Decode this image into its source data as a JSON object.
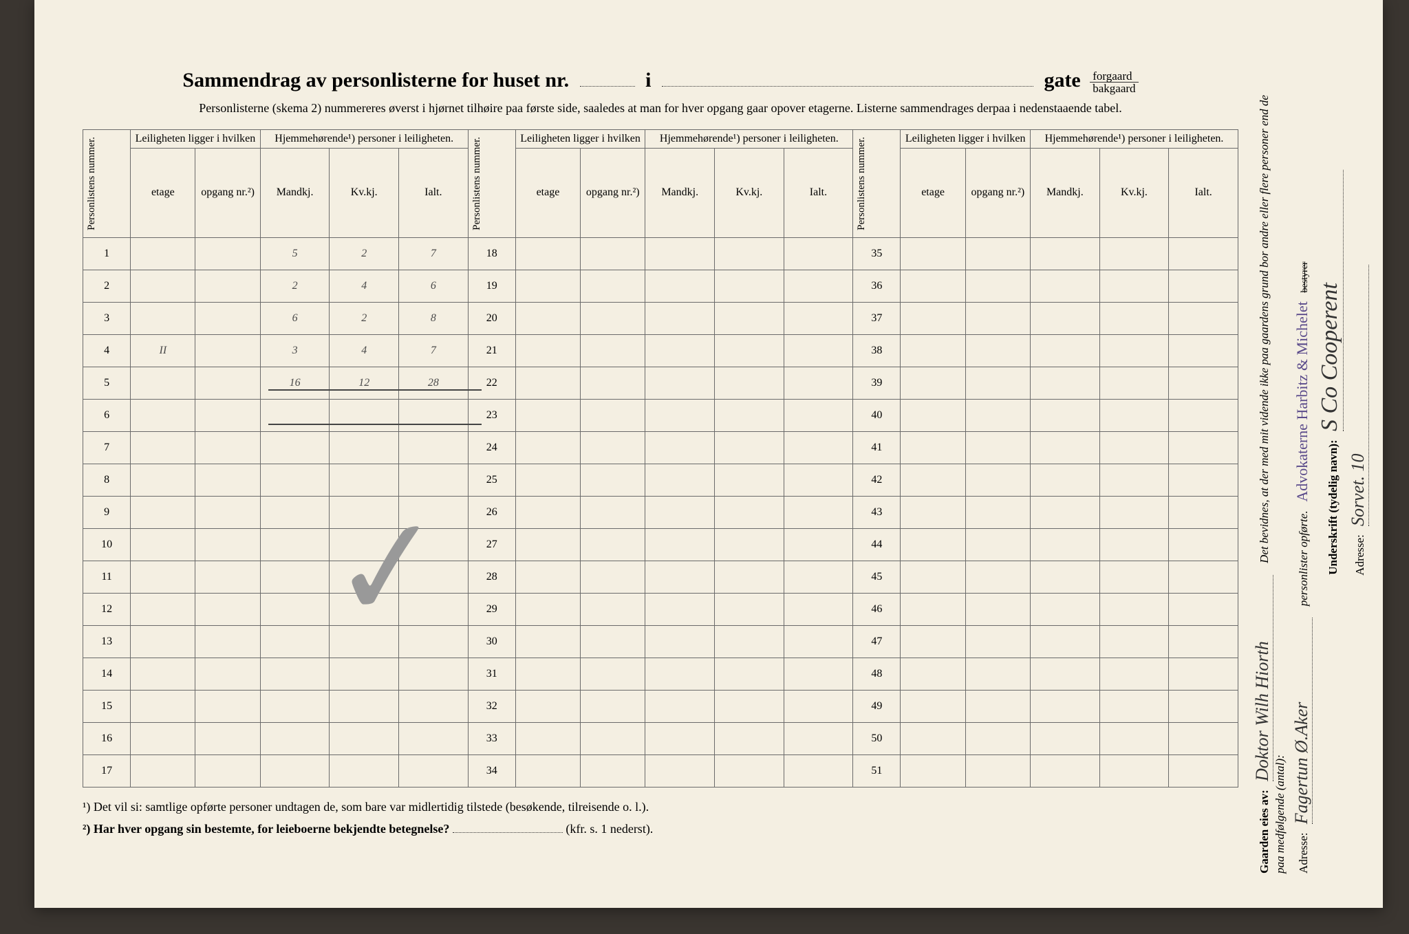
{
  "title": {
    "prefix": "Sammendrag av personlisterne for huset nr.",
    "blank_i": "i",
    "gate": "gate",
    "forgaard": "forgaard",
    "bakgaard": "bakgaard"
  },
  "subtitle": "Personlisterne (skema 2) nummereres øverst i hjørnet tilhøire paa første side, saaledes at man for hver opgang gaar opover etagerne. Listerne sammendrages derpaa i nedenstaaende tabel.",
  "headers": {
    "personlistens_nummer": "Personlistens nummer.",
    "leiligheten": "Leiligheten ligger i hvilken",
    "hjemme": "Hjemmehørende¹) personer i leiligheten.",
    "etage": "etage",
    "opgang": "opgang nr.²)",
    "mandkj": "Mandkj.",
    "kvkj": "Kv.kj.",
    "ialt": "Ialt."
  },
  "row_numbers": {
    "col1": [
      "1",
      "2",
      "3",
      "4",
      "5",
      "6",
      "7",
      "8",
      "9",
      "10",
      "11",
      "12",
      "13",
      "14",
      "15",
      "16",
      "17"
    ],
    "col2": [
      "18",
      "19",
      "20",
      "21",
      "22",
      "23",
      "24",
      "25",
      "26",
      "27",
      "28",
      "29",
      "30",
      "31",
      "32",
      "33",
      "34"
    ],
    "col3": [
      "35",
      "36",
      "37",
      "38",
      "39",
      "40",
      "41",
      "42",
      "43",
      "44",
      "45",
      "46",
      "47",
      "48",
      "49",
      "50",
      "51"
    ]
  },
  "handwritten_rows": [
    {
      "row": 1,
      "etage": "",
      "mandkj": "5",
      "kvkj": "2",
      "ialt": "7"
    },
    {
      "row": 2,
      "etage": "",
      "mandkj": "2",
      "kvkj": "4",
      "ialt": "6"
    },
    {
      "row": 3,
      "etage": "",
      "mandkj": "6",
      "kvkj": "2",
      "ialt": "8"
    },
    {
      "row": 4,
      "etage": "II",
      "mandkj": "3",
      "kvkj": "4",
      "ialt": "7"
    },
    {
      "row": 5,
      "etage": "",
      "mandkj": "16",
      "kvkj": "12",
      "ialt": "28"
    }
  ],
  "handwritten_checkmark": "✓",
  "footnotes": {
    "f1": "¹) Det vil si: samtlige opførte personer undtagen de, som bare var midlertidig tilstede (besøkende, tilreisende o. l.).",
    "f2_prefix": "²) Har hver opgang sin bestemte, for leieboerne bekjendte betegnelse?",
    "f2_suffix": "(kfr. s. 1 nederst)."
  },
  "sidebar": {
    "gaarden_label": "Gaarden eies av:",
    "gaarden_value": "Doktor Wilh Hiorth",
    "adresse_label1": "Adresse:",
    "adresse_value1": "Fagertun Ø.Aker",
    "det_bevidnes": "Det bevidnes, at der med mit vidende ikke paa gaardens grund bor andre eller flere personer end de paa medfølgende (antal):",
    "personlister": "personlister opførte.",
    "stamp": "Advokaterne Harbitz & Michelet",
    "bestyrer": "bestyrer",
    "underskrift_label": "Underskrift (tydelig navn):",
    "underskrift_value": "S Co Cooperent",
    "adresse_label2": "Adresse:",
    "adresse_value2": "Sorvet. 10"
  },
  "colors": {
    "paper": "#f4efe2",
    "ink": "#333333",
    "pencil": "#4a4a4a",
    "border": "#6a6a6a",
    "stamp": "#5a4a8a",
    "background": "#3a3530"
  }
}
